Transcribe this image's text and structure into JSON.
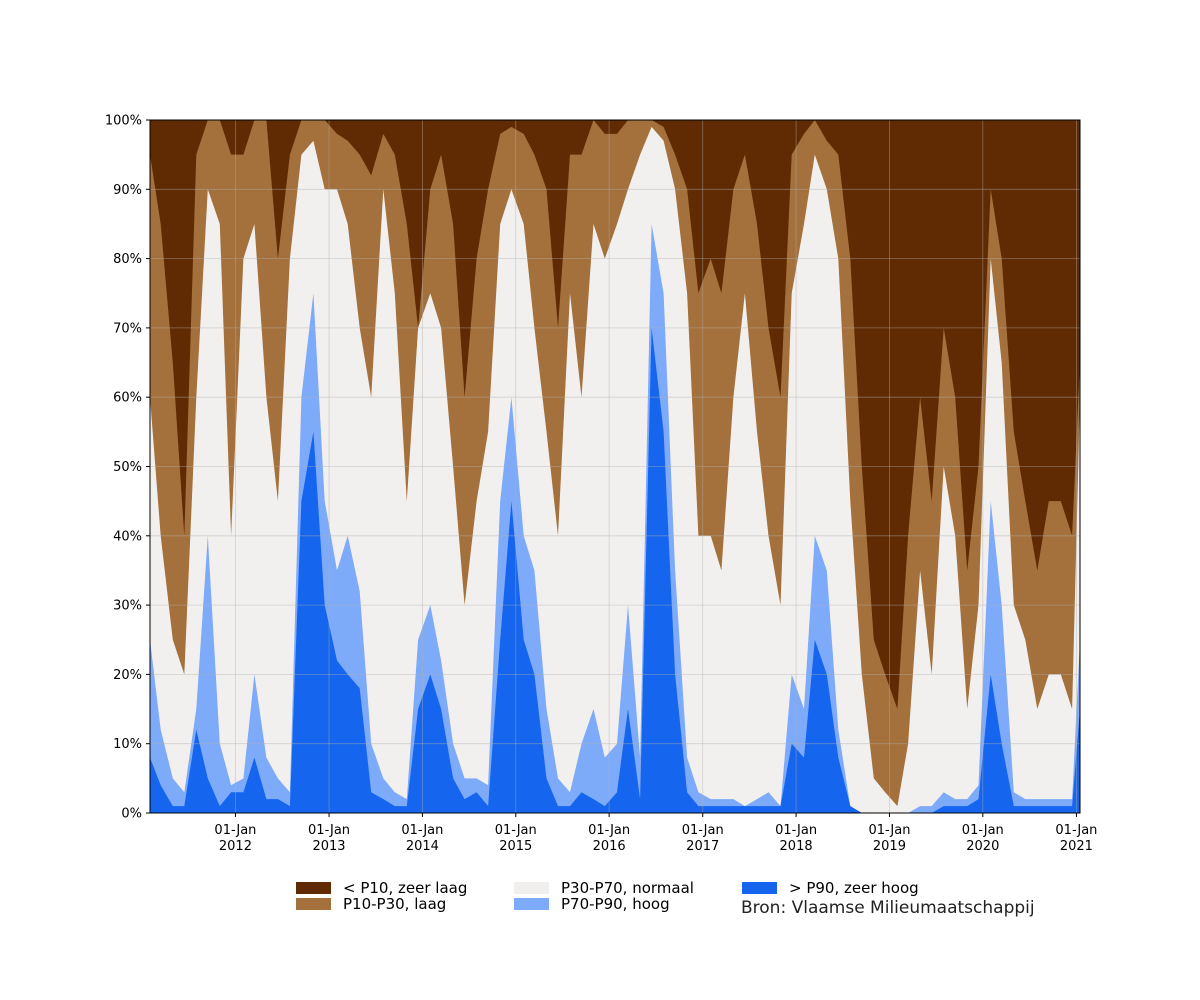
{
  "chart_data": {
    "type": "area",
    "stacked": true,
    "title": "",
    "xlabel": "",
    "ylabel": "",
    "ylim": [
      0,
      100
    ],
    "xlim": [
      "2011-02-01",
      "2021-01-15"
    ],
    "grid": true,
    "legend_position": "bottom",
    "y_ticks": [
      "0%",
      "10%",
      "20%",
      "30%",
      "40%",
      "50%",
      "60%",
      "70%",
      "80%",
      "90%",
      "100%"
    ],
    "x_ticks": [
      {
        "date": "2012-01-01",
        "line1": "01-Jan",
        "line2": "2012"
      },
      {
        "date": "2013-01-01",
        "line1": "01-Jan",
        "line2": "2013"
      },
      {
        "date": "2014-01-01",
        "line1": "01-Jan",
        "line2": "2014"
      },
      {
        "date": "2015-01-01",
        "line1": "01-Jan",
        "line2": "2015"
      },
      {
        "date": "2016-01-01",
        "line1": "01-Jan",
        "line2": "2016"
      },
      {
        "date": "2017-01-01",
        "line1": "01-Jan",
        "line2": "2017"
      },
      {
        "date": "2018-01-01",
        "line1": "01-Jan",
        "line2": "2018"
      },
      {
        "date": "2019-01-01",
        "line1": "01-Jan",
        "line2": "2019"
      },
      {
        "date": "2020-01-01",
        "line1": "01-Jan",
        "line2": "2020"
      },
      {
        "date": "2021-01-01",
        "line1": "01-Jan",
        "line2": "2021"
      }
    ],
    "series_order_bottom_to_top": [
      "> P90, zeer hoog",
      "P70-P90, hoog",
      "P30-P70, normaal",
      "P10-P30, laag",
      "< P10, zeer laag"
    ],
    "series": [
      {
        "name": "> P90, zeer hoog",
        "color": "#1565ee"
      },
      {
        "name": "P70-P90, hoog",
        "color": "#7eaafa"
      },
      {
        "name": "P30-P70, normaal",
        "color": "#f2f0ee"
      },
      {
        "name": "P10-P30, laag",
        "color": "#a4703b"
      },
      {
        "name": "< P10, zeer laag",
        "color": "#602b02"
      }
    ],
    "x": [
      "2011-02-01",
      "2011-03-15",
      "2011-05-01",
      "2011-06-15",
      "2011-08-01",
      "2011-09-15",
      "2011-11-01",
      "2011-12-15",
      "2012-02-01",
      "2012-03-15",
      "2012-05-01",
      "2012-06-15",
      "2012-08-01",
      "2012-09-15",
      "2012-11-01",
      "2012-12-15",
      "2013-02-01",
      "2013-03-15",
      "2013-05-01",
      "2013-06-15",
      "2013-08-01",
      "2013-09-15",
      "2013-11-01",
      "2013-12-15",
      "2014-02-01",
      "2014-03-15",
      "2014-05-01",
      "2014-06-15",
      "2014-08-01",
      "2014-09-15",
      "2014-11-01",
      "2014-12-15",
      "2015-02-01",
      "2015-03-15",
      "2015-05-01",
      "2015-06-15",
      "2015-08-01",
      "2015-09-15",
      "2015-11-01",
      "2015-12-15",
      "2016-02-01",
      "2016-03-15",
      "2016-05-01",
      "2016-06-15",
      "2016-08-01",
      "2016-09-15",
      "2016-11-01",
      "2016-12-15",
      "2017-02-01",
      "2017-03-15",
      "2017-05-01",
      "2017-06-15",
      "2017-08-01",
      "2017-09-15",
      "2017-11-01",
      "2017-12-15",
      "2018-02-01",
      "2018-03-15",
      "2018-05-01",
      "2018-06-15",
      "2018-08-01",
      "2018-09-15",
      "2018-11-01",
      "2018-12-15",
      "2019-02-01",
      "2019-03-15",
      "2019-05-01",
      "2019-06-15",
      "2019-08-01",
      "2019-09-15",
      "2019-11-01",
      "2019-12-15",
      "2020-02-01",
      "2020-03-15",
      "2020-05-01",
      "2020-06-15",
      "2020-08-01",
      "2020-09-15",
      "2020-11-01",
      "2020-12-15",
      "2021-01-15"
    ],
    "boundaries": {
      "p90_top": [
        8,
        4,
        1,
        1,
        12,
        5,
        1,
        3,
        3,
        8,
        2,
        2,
        1,
        45,
        55,
        30,
        22,
        20,
        18,
        3,
        2,
        1,
        1,
        15,
        20,
        15,
        5,
        2,
        3,
        1,
        25,
        45,
        25,
        20,
        5,
        1,
        1,
        3,
        2,
        1,
        3,
        15,
        2,
        70,
        55,
        20,
        3,
        1,
        1,
        1,
        1,
        1,
        1,
        1,
        1,
        10,
        8,
        25,
        20,
        8,
        1,
        0,
        0,
        0,
        0,
        0,
        0,
        0,
        1,
        1,
        1,
        2,
        20,
        10,
        1,
        1,
        1,
        1,
        1,
        1,
        15
      ],
      "p70_top": [
        25,
        12,
        5,
        3,
        15,
        40,
        10,
        4,
        5,
        20,
        8,
        5,
        3,
        60,
        75,
        45,
        35,
        40,
        32,
        10,
        5,
        3,
        2,
        25,
        30,
        22,
        10,
        5,
        5,
        4,
        45,
        60,
        40,
        35,
        15,
        5,
        3,
        10,
        15,
        8,
        10,
        30,
        8,
        85,
        75,
        35,
        8,
        3,
        2,
        2,
        2,
        1,
        2,
        3,
        1,
        20,
        15,
        40,
        35,
        12,
        1,
        0,
        0,
        0,
        0,
        0,
        1,
        1,
        3,
        2,
        2,
        4,
        45,
        30,
        3,
        2,
        2,
        2,
        2,
        2,
        25
      ],
      "p30_top": [
        60,
        40,
        25,
        20,
        60,
        90,
        85,
        40,
        80,
        85,
        60,
        45,
        80,
        95,
        97,
        90,
        90,
        85,
        70,
        60,
        90,
        75,
        45,
        70,
        75,
        70,
        50,
        30,
        45,
        55,
        85,
        90,
        85,
        70,
        55,
        40,
        75,
        60,
        85,
        80,
        85,
        90,
        95,
        99,
        97,
        90,
        75,
        40,
        40,
        35,
        60,
        75,
        55,
        40,
        30,
        75,
        85,
        95,
        90,
        80,
        45,
        20,
        5,
        3,
        1,
        10,
        35,
        20,
        50,
        40,
        15,
        30,
        80,
        65,
        30,
        25,
        15,
        20,
        20,
        15,
        60
      ],
      "p10_top": [
        95,
        85,
        65,
        40,
        95,
        100,
        100,
        95,
        95,
        100,
        100,
        80,
        95,
        100,
        100,
        100,
        98,
        97,
        95,
        92,
        98,
        95,
        85,
        70,
        90,
        95,
        85,
        60,
        80,
        90,
        98,
        99,
        98,
        95,
        90,
        70,
        95,
        95,
        100,
        98,
        98,
        100,
        100,
        100,
        99,
        95,
        90,
        75,
        80,
        75,
        90,
        95,
        85,
        70,
        60,
        95,
        98,
        100,
        97,
        95,
        80,
        50,
        25,
        20,
        15,
        40,
        60,
        45,
        70,
        60,
        35,
        50,
        90,
        80,
        55,
        45,
        35,
        45,
        45,
        40,
        65
      ]
    }
  },
  "legend": {
    "items": [
      {
        "label": "< P10, zeer laag",
        "color": "#602b02"
      },
      {
        "label": "P10-P30, laag",
        "color": "#a4703b"
      },
      {
        "label": "P30-P70, normaal",
        "color": "#f2f0ee"
      },
      {
        "label": "P70-P90, hoog",
        "color": "#7eaafa"
      },
      {
        "label": "> P90, zeer hoog",
        "color": "#1565ee"
      }
    ]
  },
  "source_text": "Bron: Vlaamse Milieumaatschappij"
}
